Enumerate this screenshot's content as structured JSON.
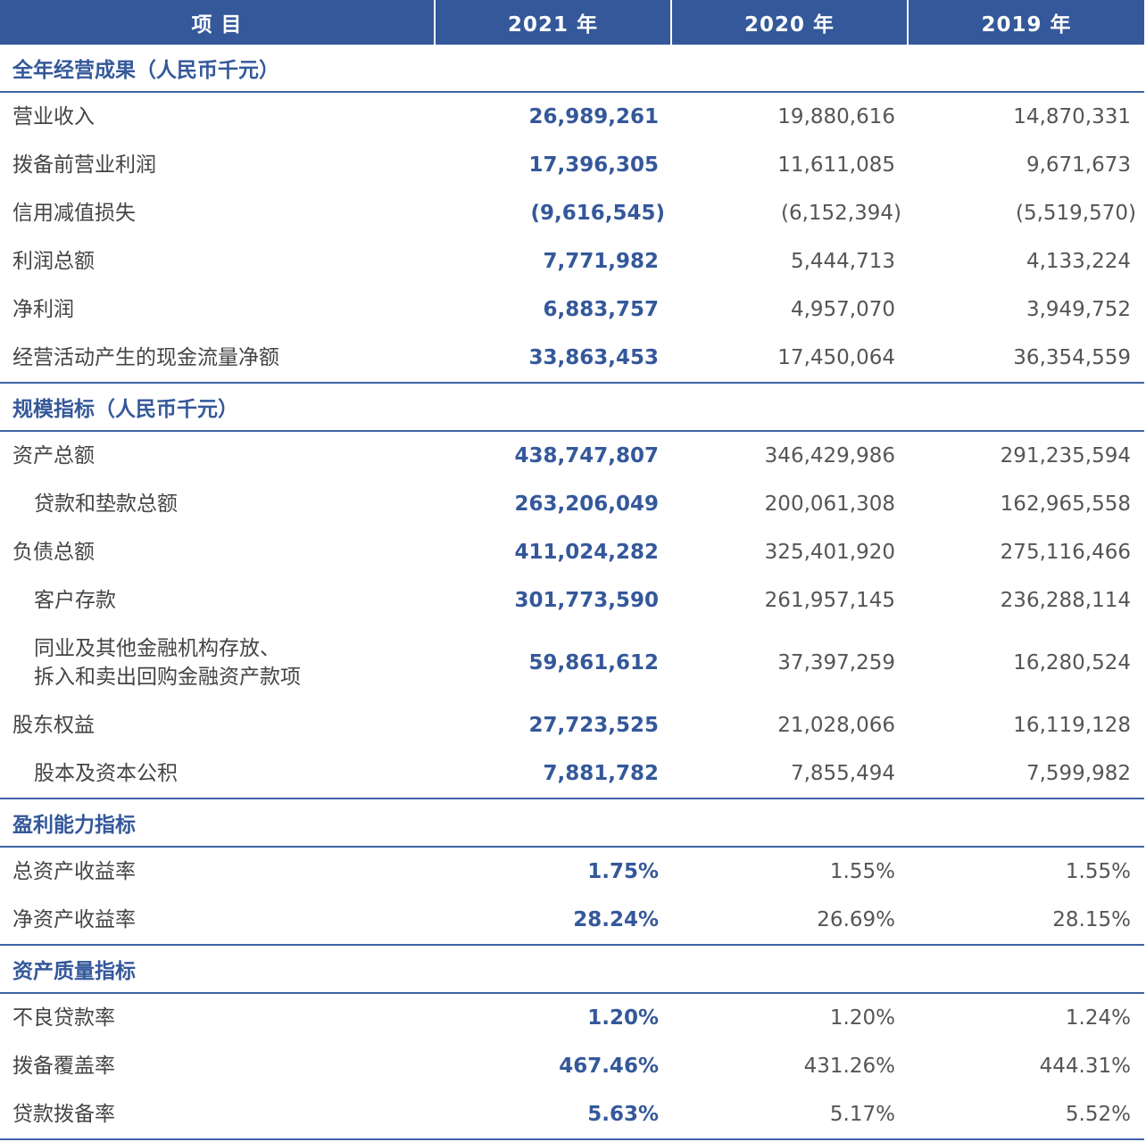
{
  "header": {
    "item": "项 目",
    "y2021": "2021 年",
    "y2020": "2020 年",
    "y2019": "2019 年"
  },
  "sections": [
    {
      "title": "全年经营成果（人民币千元）",
      "rows": [
        {
          "label": "营业收入",
          "v2021": "26,989,261",
          "v2020": "19,880,616",
          "v2019": "14,870,331"
        },
        {
          "label": "拨备前营业利润",
          "v2021": "17,396,305",
          "v2020": "11,611,085",
          "v2019": "9,671,673"
        },
        {
          "label": "信用减值损失",
          "v2021": "(9,616,545)",
          "v2020": "(6,152,394)",
          "v2019": "(5,519,570)"
        },
        {
          "label": "利润总额",
          "v2021": "7,771,982",
          "v2020": "5,444,713",
          "v2019": "4,133,224"
        },
        {
          "label": "净利润",
          "v2021": "6,883,757",
          "v2020": "4,957,070",
          "v2019": "3,949,752"
        },
        {
          "label": "经营活动产生的现金流量净额",
          "v2021": "33,863,453",
          "v2020": "17,450,064",
          "v2019": "36,354,559"
        }
      ]
    },
    {
      "title": "规模指标（人民币千元）",
      "rows": [
        {
          "label": "资产总额",
          "v2021": "438,747,807",
          "v2020": "346,429,986",
          "v2019": "291,235,594"
        },
        {
          "label": "贷款和垫款总额",
          "v2021": "263,206,049",
          "v2020": "200,061,308",
          "v2019": "162,965,558"
        },
        {
          "label": "负债总额",
          "v2021": "411,024,282",
          "v2020": "325,401,920",
          "v2019": "275,116,466"
        },
        {
          "label": "客户存款",
          "v2021": "301,773,590",
          "v2020": "261,957,145",
          "v2019": "236,288,114"
        },
        {
          "label_line1": "同业及其他金融机构存放、",
          "label_line2": "拆入和卖出回购金融资产款项",
          "v2021": "59,861,612",
          "v2020": "37,397,259",
          "v2019": "16,280,524"
        },
        {
          "label": "股东权益",
          "v2021": "27,723,525",
          "v2020": "21,028,066",
          "v2019": "16,119,128"
        },
        {
          "label": "股本及资本公积",
          "v2021": "7,881,782",
          "v2020": "7,855,494",
          "v2019": "7,599,982"
        }
      ]
    },
    {
      "title": "盈利能力指标",
      "rows": [
        {
          "label": "总资产收益率",
          "v2021": "1.75%",
          "v2020": "1.55%",
          "v2019": "1.55%"
        },
        {
          "label": "净资产收益率",
          "v2021": "28.24%",
          "v2020": "26.69%",
          "v2019": "28.15%"
        }
      ]
    },
    {
      "title": "资产质量指标",
      "rows": [
        {
          "label": "不良贷款率",
          "v2021": "1.20%",
          "v2020": "1.20%",
          "v2019": "1.24%"
        },
        {
          "label": "拨备覆盖率",
          "v2021": "467.46%",
          "v2020": "431.26%",
          "v2019": "444.31%"
        },
        {
          "label": "贷款拨备率",
          "v2021": "5.63%",
          "v2020": "5.17%",
          "v2019": "5.52%"
        }
      ]
    }
  ]
}
